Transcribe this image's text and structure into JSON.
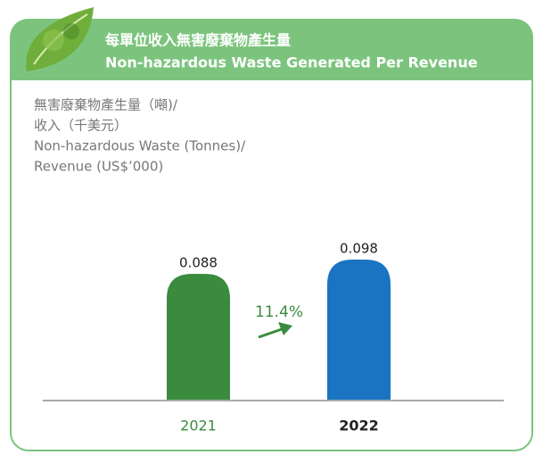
{
  "chart_data": {
    "type": "bar",
    "title": [
      "每單位收入無害廢棄物產生量",
      "Non-hazardous Waste Generated Per Revenue"
    ],
    "y_label": [
      "無害廢棄物產生量（噸)/",
      "收入（千美元）",
      "Non-hazardous Waste (Tonnes)/",
      "Revenue (US$’000)"
    ],
    "categories": [
      "2021",
      "2022"
    ],
    "values": [
      0.088,
      0.098
    ],
    "colors": [
      "#3b8b3f",
      "#1b74c1"
    ],
    "annotation": "11.4%"
  }
}
